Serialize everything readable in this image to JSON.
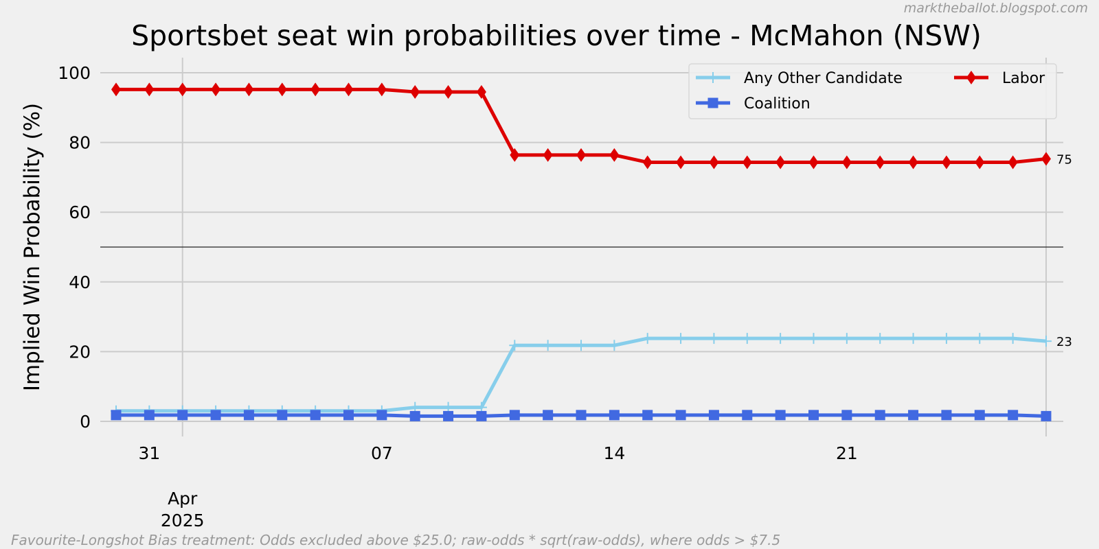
{
  "credit": "marktheballot.blogspot.com",
  "footnote": "Favourite-Longshot Bias treatment: Odds excluded above $25.0; raw-odds * sqrt(raw-odds), where odds > $7.5",
  "chart_data": {
    "type": "line",
    "title": "Sportsbet seat win probabilities over time - McMahon (NSW)",
    "xlabel": "",
    "ylabel": "Implied Win Probability (%)",
    "x": [
      "2025-03-30",
      "2025-03-31",
      "2025-04-01",
      "2025-04-02",
      "2025-04-03",
      "2025-04-04",
      "2025-04-05",
      "2025-04-06",
      "2025-04-07",
      "2025-04-08",
      "2025-04-09",
      "2025-04-10",
      "2025-04-11",
      "2025-04-12",
      "2025-04-13",
      "2025-04-14",
      "2025-04-15",
      "2025-04-16",
      "2025-04-17",
      "2025-04-18",
      "2025-04-19",
      "2025-04-20",
      "2025-04-21",
      "2025-04-22",
      "2025-04-23",
      "2025-04-24",
      "2025-04-25",
      "2025-04-26",
      "2025-04-27"
    ],
    "x_ticks": [
      {
        "date": "2025-03-31",
        "label": "31"
      },
      {
        "date": "2025-04-07",
        "label": "07"
      },
      {
        "date": "2025-04-14",
        "label": "14"
      },
      {
        "date": "2025-04-21",
        "label": "21"
      }
    ],
    "x_month_tick": {
      "date": "2025-04-01",
      "label": "Apr\n2025"
    },
    "ylim": [
      0,
      105
    ],
    "yticks": [
      0,
      20,
      40,
      60,
      80,
      100
    ],
    "reference_line_y": 50,
    "grid": true,
    "legend_position": "top-right",
    "series": [
      {
        "name": "Any Other Candidate",
        "color": "#87ceeb",
        "marker": "plus",
        "values": [
          3,
          3,
          3,
          3,
          3,
          3,
          3,
          3,
          3,
          4,
          4,
          4,
          21.8,
          21.8,
          21.8,
          21.8,
          23.8,
          23.8,
          23.8,
          23.8,
          23.8,
          23.8,
          23.8,
          23.8,
          23.8,
          23.8,
          23.8,
          23.8,
          23
        ]
      },
      {
        "name": "Coalition",
        "color": "#4169e1",
        "marker": "square",
        "values": [
          1.8,
          1.8,
          1.8,
          1.8,
          1.8,
          1.8,
          1.8,
          1.8,
          1.8,
          1.5,
          1.5,
          1.5,
          1.8,
          1.8,
          1.8,
          1.8,
          1.8,
          1.8,
          1.8,
          1.8,
          1.8,
          1.8,
          1.8,
          1.8,
          1.8,
          1.8,
          1.8,
          1.8,
          1.5
        ]
      },
      {
        "name": "Labor",
        "color": "#dd0000",
        "marker": "diamond",
        "values": [
          95.2,
          95.2,
          95.2,
          95.2,
          95.2,
          95.2,
          95.2,
          95.2,
          95.2,
          94.5,
          94.5,
          94.5,
          76.4,
          76.4,
          76.4,
          76.4,
          74.3,
          74.3,
          74.3,
          74.3,
          74.3,
          74.3,
          74.3,
          74.3,
          74.3,
          74.3,
          74.3,
          74.3,
          75.3
        ]
      }
    ],
    "end_labels": [
      {
        "series": "Labor",
        "text": "75"
      },
      {
        "series": "Any Other Candidate",
        "text": "23"
      }
    ]
  }
}
